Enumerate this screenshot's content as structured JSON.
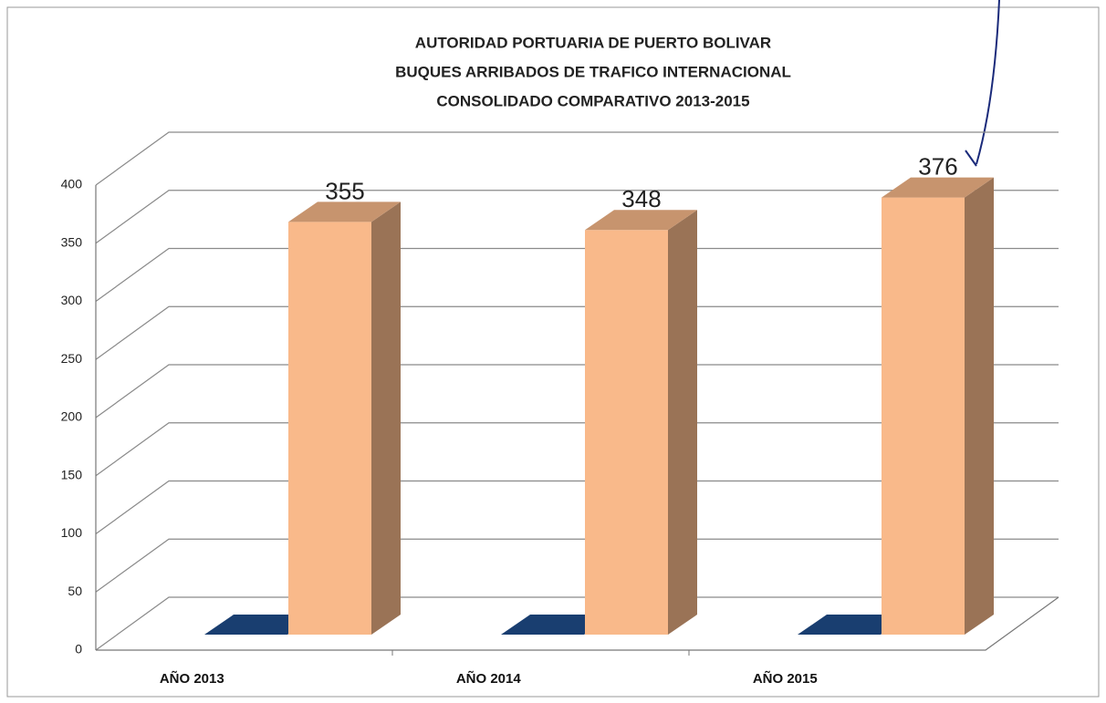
{
  "chart_data": {
    "type": "bar3d",
    "title": [
      "AUTORIDAD PORTUARIA DE PUERTO BOLIVAR",
      "BUQUES ARRIBADOS DE TRAFICO INTERNACIONAL",
      "CONSOLIDADO COMPARATIVO 2013-2015"
    ],
    "categories": [
      "AÑO 2013",
      "AÑO 2014",
      "AÑO 2015"
    ],
    "series": [
      {
        "color": "#1f4e8c",
        "values": [
          0,
          0,
          0
        ]
      },
      {
        "color": "#f9b98a",
        "values": [
          355,
          348,
          376
        ],
        "show_labels": true
      }
    ],
    "ylim": [
      0,
      400
    ],
    "yticks": [
      0,
      50,
      100,
      150,
      200,
      250,
      300,
      350,
      400
    ],
    "grid": true
  }
}
